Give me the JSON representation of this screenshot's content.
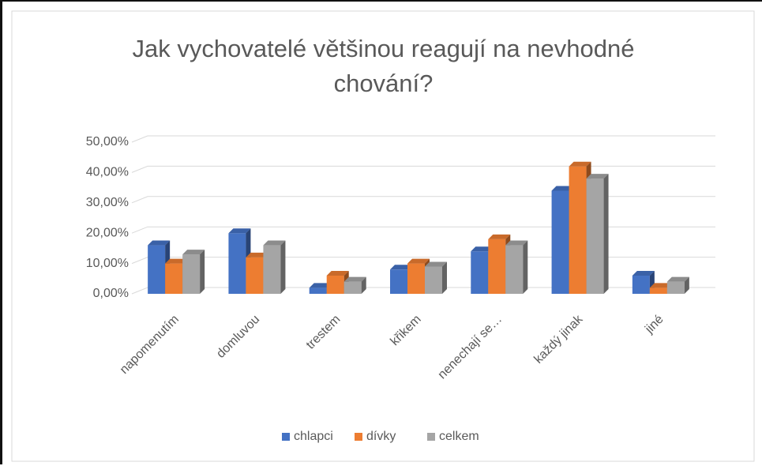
{
  "chart_data": {
    "type": "bar3d",
    "title": "Jak vychovatelé většinou reagují na nevhodné chování?",
    "categories": [
      "napomenutím",
      "domluvou",
      "trestem",
      "křikem",
      "nenechají se…",
      "každý jinak",
      "jiné"
    ],
    "series": [
      {
        "name": "chlapci",
        "color": "#4472c4",
        "values": [
          16,
          20,
          2,
          8,
          14,
          34,
          6
        ]
      },
      {
        "name": "dívky",
        "color": "#ed7d31",
        "values": [
          10,
          12,
          6,
          10,
          18,
          42,
          2
        ]
      },
      {
        "name": "celkem",
        "color": "#a5a5a5",
        "values": [
          13,
          16,
          4,
          9,
          16,
          38,
          4
        ]
      }
    ],
    "ylim": [
      0,
      50
    ],
    "yticks": [
      {
        "value": 0,
        "label": "0,00%"
      },
      {
        "value": 10,
        "label": "10,00%"
      },
      {
        "value": 20,
        "label": "20,00%"
      },
      {
        "value": 30,
        "label": "30,00%"
      },
      {
        "value": 40,
        "label": "40,00%"
      },
      {
        "value": 50,
        "label": "50,00%"
      }
    ],
    "grid": true,
    "legend": "bottom"
  }
}
